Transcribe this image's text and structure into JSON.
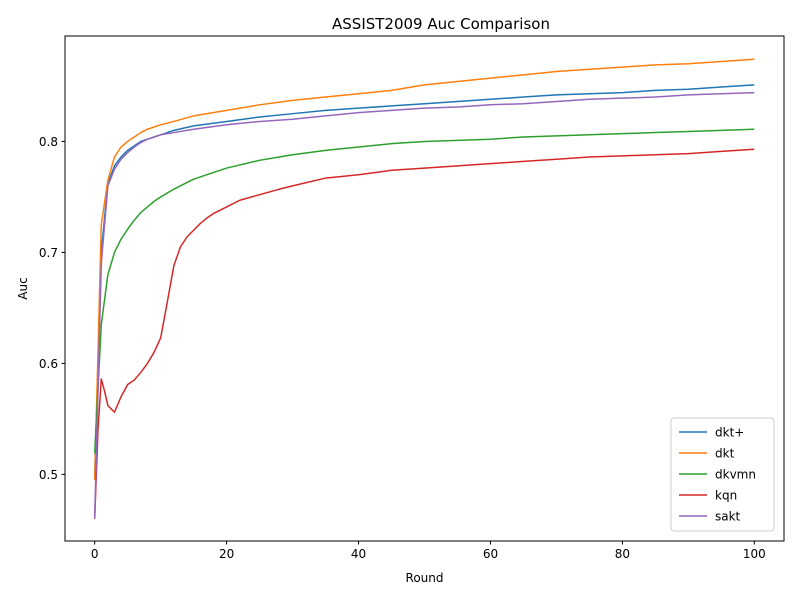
{
  "chart_data": {
    "type": "line",
    "title": "ASSIST2009 Auc Comparison",
    "xlabel": "Round",
    "ylabel": "Auc",
    "xlim": [
      -4.5,
      104.5
    ],
    "ylim": [
      0.44,
      0.895
    ],
    "xticks": [
      0,
      20,
      40,
      60,
      80,
      100
    ],
    "xtick_labels": [
      "0",
      "20",
      "40",
      "60",
      "80",
      "100"
    ],
    "yticks": [
      0.5,
      0.6,
      0.7,
      0.8
    ],
    "ytick_labels": [
      "0.5",
      "0.6",
      "0.7",
      "0.8"
    ],
    "grid": false,
    "legend_position": "lower-right",
    "series": [
      {
        "name": "dkt+",
        "color": "#1f77b4",
        "x": [
          0,
          1,
          2,
          3,
          4,
          5,
          6,
          7,
          8,
          9,
          10,
          12,
          15,
          20,
          25,
          30,
          35,
          40,
          45,
          50,
          55,
          60,
          65,
          70,
          75,
          80,
          85,
          90,
          95,
          100
        ],
        "y": [
          0.498,
          0.7,
          0.762,
          0.778,
          0.786,
          0.792,
          0.796,
          0.8,
          0.802,
          0.804,
          0.806,
          0.81,
          0.814,
          0.818,
          0.822,
          0.825,
          0.828,
          0.83,
          0.832,
          0.834,
          0.836,
          0.838,
          0.84,
          0.842,
          0.843,
          0.844,
          0.846,
          0.847,
          0.849,
          0.851
        ]
      },
      {
        "name": "dkt",
        "color": "#ff7f0e",
        "x": [
          0,
          1,
          2,
          3,
          4,
          5,
          6,
          7,
          8,
          9,
          10,
          12,
          15,
          20,
          25,
          30,
          35,
          40,
          45,
          50,
          55,
          60,
          65,
          70,
          75,
          80,
          85,
          90,
          95,
          100
        ],
        "y": [
          0.495,
          0.725,
          0.765,
          0.786,
          0.795,
          0.8,
          0.804,
          0.808,
          0.811,
          0.813,
          0.815,
          0.818,
          0.823,
          0.828,
          0.833,
          0.837,
          0.84,
          0.843,
          0.846,
          0.851,
          0.854,
          0.857,
          0.86,
          0.863,
          0.865,
          0.867,
          0.869,
          0.87,
          0.872,
          0.874
        ]
      },
      {
        "name": "dkvmn",
        "color": "#2ca02c",
        "x": [
          0,
          1,
          2,
          3,
          4,
          5,
          6,
          7,
          8,
          9,
          10,
          12,
          15,
          20,
          25,
          30,
          35,
          40,
          45,
          50,
          55,
          60,
          65,
          70,
          75,
          80,
          85,
          90,
          95,
          100
        ],
        "y": [
          0.519,
          0.635,
          0.68,
          0.7,
          0.712,
          0.721,
          0.729,
          0.736,
          0.741,
          0.746,
          0.75,
          0.757,
          0.766,
          0.776,
          0.783,
          0.788,
          0.792,
          0.795,
          0.798,
          0.8,
          0.801,
          0.802,
          0.804,
          0.805,
          0.806,
          0.807,
          0.808,
          0.809,
          0.81,
          0.811
        ]
      },
      {
        "name": "kqn",
        "color": "#d62728",
        "x": [
          0,
          0.5,
          1,
          1.5,
          2,
          3,
          4,
          5,
          6,
          7,
          8,
          9,
          10,
          11,
          12,
          13,
          14,
          15,
          16,
          17,
          18,
          20,
          22,
          25,
          28,
          30,
          35,
          40,
          45,
          50,
          55,
          60,
          65,
          70,
          75,
          80,
          85,
          90,
          95,
          100
        ],
        "y": [
          0.46,
          0.54,
          0.586,
          0.575,
          0.562,
          0.556,
          0.57,
          0.581,
          0.585,
          0.592,
          0.6,
          0.61,
          0.623,
          0.655,
          0.688,
          0.705,
          0.714,
          0.72,
          0.726,
          0.731,
          0.735,
          0.741,
          0.747,
          0.752,
          0.757,
          0.76,
          0.767,
          0.77,
          0.774,
          0.776,
          0.778,
          0.78,
          0.782,
          0.784,
          0.786,
          0.787,
          0.788,
          0.789,
          0.791,
          0.793
        ]
      },
      {
        "name": "sakt",
        "color": "#9467bd",
        "x": [
          0,
          1,
          2,
          3,
          4,
          5,
          6,
          7,
          8,
          9,
          10,
          12,
          15,
          20,
          25,
          30,
          35,
          40,
          45,
          50,
          55,
          60,
          65,
          70,
          75,
          80,
          85,
          90,
          95,
          100
        ],
        "y": [
          0.46,
          0.69,
          0.76,
          0.775,
          0.784,
          0.79,
          0.795,
          0.799,
          0.802,
          0.804,
          0.806,
          0.808,
          0.811,
          0.815,
          0.818,
          0.82,
          0.823,
          0.826,
          0.828,
          0.83,
          0.831,
          0.833,
          0.834,
          0.836,
          0.838,
          0.839,
          0.84,
          0.842,
          0.843,
          0.844
        ]
      }
    ]
  }
}
